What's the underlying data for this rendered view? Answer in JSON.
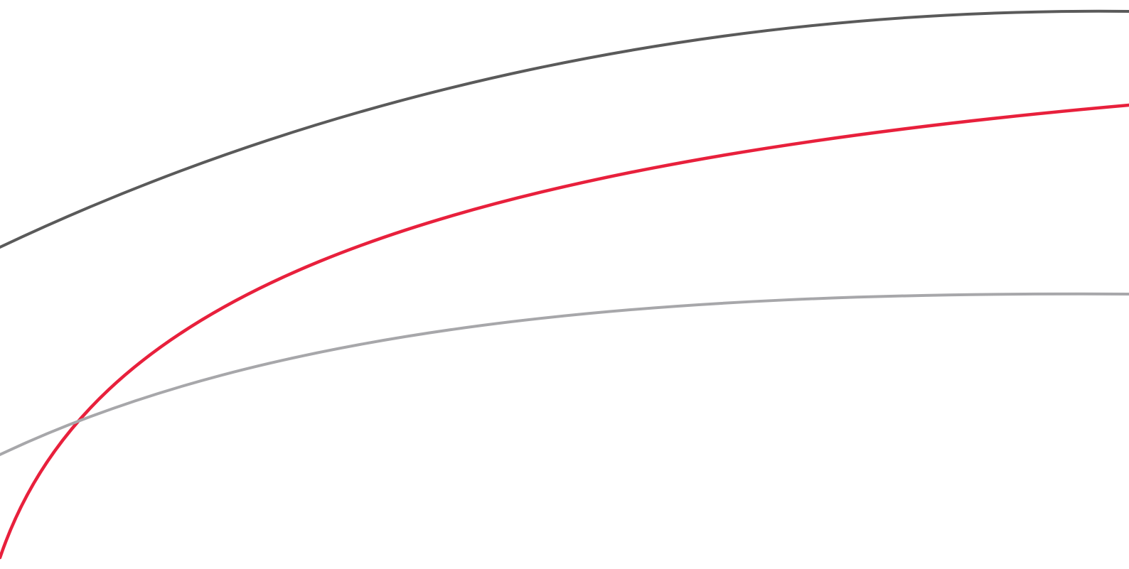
{
  "colors": {
    "background": "#ffffff",
    "dark_curve": "#5a5a5a",
    "red_curve": "#e8203c",
    "light_curve": "#a7a7aa"
  },
  "curves": [
    {
      "name": "dark-gray-arc",
      "color_key": "dark_curve"
    },
    {
      "name": "red-arc",
      "color_key": "red_curve"
    },
    {
      "name": "light-gray-arc",
      "color_key": "light_curve"
    }
  ]
}
